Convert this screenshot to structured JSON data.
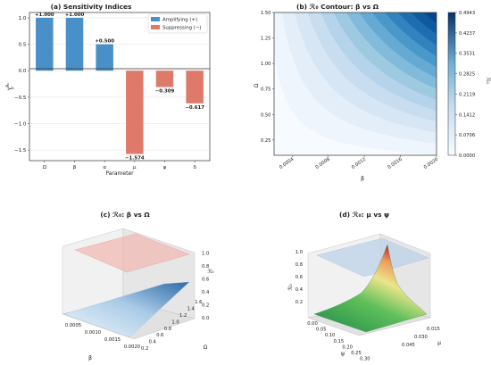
{
  "chart_data": [
    {
      "type": "bar",
      "title": "(a) Sensitivity Indices",
      "xlabel": "Parameter",
      "ylabel": "Υ",
      "ylabel_sup": "R₀",
      "ylabel_sub": "p",
      "categories": [
        "Ω",
        "β",
        "α",
        "μ",
        "ψ",
        "δ"
      ],
      "values": [
        1.0,
        1.0,
        0.5,
        -1.574,
        -0.309,
        -0.617
      ],
      "value_labels": [
        "+1.000",
        "+1.000",
        "+0.500",
        "−1.574",
        "−0.309",
        "−0.617"
      ],
      "yticks": [
        "1.0",
        "0.5",
        "0.0",
        "−0.5",
        "−1.0",
        "−1.5"
      ],
      "ylim": [
        -1.7,
        1.1
      ],
      "legend": [
        "Amplifying (+)",
        "Suppressing (−)"
      ],
      "legend_position": "top-right",
      "grid": "y",
      "colors": {
        "amplifying": "#4a90c8",
        "suppressing": "#df7a6a"
      }
    },
    {
      "type": "heatmap",
      "title": "(b) ℛ₀ Contour: β vs Ω",
      "xlabel": "β",
      "ylabel": "Ω",
      "xticks": [
        "0.0004",
        "0.0008",
        "0.0012",
        "0.0016",
        "0.0020"
      ],
      "yticks": [
        "0.25",
        "0.50",
        "0.75",
        "1.00",
        "1.25",
        "1.50"
      ],
      "xlim": [
        0.0002,
        0.002
      ],
      "ylim": [
        0.1,
        1.5
      ],
      "colorbar_label": "ℛ₀",
      "colorbar_ticks": [
        "0.4943",
        "0.4237",
        "0.3531",
        "0.2825",
        "0.2119",
        "0.1412",
        "0.0706",
        "0.0000"
      ],
      "zmax": 0.4943
    },
    {
      "type": "surface",
      "title": "(c) ℛ₀: β vs Ω",
      "xlabel": "β",
      "ylabel": "Ω",
      "zlabel": "ℛ₀",
      "xticks": [
        "0.0005",
        "0.0010",
        "0.0015",
        "0.0020"
      ],
      "yticks": [
        "0.2",
        "0.4",
        "0.6",
        "0.8",
        "1.0",
        "1.2",
        "1.4",
        "1.6"
      ],
      "zticks": [
        "0.0",
        "0.2",
        "0.4",
        "0.6",
        "0.8",
        "1.0"
      ],
      "zlim": [
        0,
        1.0
      ],
      "threshold_plane": 1.0
    },
    {
      "type": "surface",
      "title": "(d) ℛ₀: μ vs ψ",
      "xlabel": "ψ",
      "ylabel": "μ",
      "zlabel": "ℛ₀",
      "xticks": [
        "0.00",
        "0.05",
        "0.10",
        "0.15",
        "0.20",
        "0.25",
        "0.30"
      ],
      "yticks": [
        "0.015",
        "0.030",
        "0.045"
      ],
      "zticks": [
        "0.2",
        "0.4",
        "0.6",
        "0.8",
        "1.0"
      ],
      "zlim": [
        0,
        1.0
      ],
      "threshold_plane": 1.0
    }
  ]
}
